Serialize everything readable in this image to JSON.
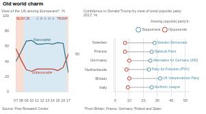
{
  "title": "Old world charm",
  "chart_data": [
    {
      "type": "line",
      "subtitle": "View of the US among Europeans*, %",
      "x": [
        2007,
        2008,
        2009,
        2010,
        2011,
        2012,
        2013,
        2014,
        2015,
        2016,
        2017
      ],
      "series": [
        {
          "name": "Favourable",
          "color": "#2e6b7a",
          "values": [
            40,
            53,
            67,
            68,
            63,
            63,
            64,
            63,
            65,
            64,
            25
          ]
        },
        {
          "name": "Unfavourable",
          "color": "#c0392b",
          "values": [
            57,
            42,
            29,
            27,
            30,
            30,
            30,
            30,
            28,
            32,
            50
          ]
        }
      ],
      "xlim": [
        2007,
        2017
      ],
      "xticks": [
        {
          "value": 2007,
          "label": "07"
        },
        {
          "value": 2008,
          "label": "08"
        },
        {
          "value": 2009,
          "label": "09"
        },
        {
          "value": 2010,
          "label": "10"
        },
        {
          "value": 2011,
          "label": "11"
        },
        {
          "value": 2012,
          "label": "12"
        },
        {
          "value": 2013,
          "label": "13"
        },
        {
          "value": 2014,
          "label": "14"
        },
        {
          "value": 2015,
          "label": "15"
        },
        {
          "value": 2016,
          "label": "16"
        },
        {
          "value": 2017,
          "label": "17"
        }
      ],
      "ylim": [
        0,
        100
      ],
      "yticks": [
        0,
        20,
        40,
        60,
        80,
        100
      ],
      "y2lim": [
        0,
        100
      ],
      "y2ticks": [
        50
      ],
      "regions": [
        {
          "label": "BUSH JR",
          "x": [
            2007,
            2008.5
          ],
          "color": "#f5cfc0",
          "text_color": "#c0392b"
        },
        {
          "label": "O  B  A  M  A",
          "x": [
            2008.5,
            2016.7
          ],
          "color": "#c8dff0",
          "text_color": "#888888"
        },
        {
          "label": "TRUMP",
          "x": [
            2016.7,
            2017
          ],
          "color": "#f5cfc0",
          "text_color": "#c0392b"
        }
      ],
      "grid": false,
      "source": "Source: Pew Research Centre"
    },
    {
      "type": "dot",
      "subtitle": [
        "Confidence in Donald Trump by view of local populist party",
        "2017, %"
      ],
      "categories": [
        "Sweden",
        "France",
        "Germany",
        "Netherlands",
        "Britain",
        "Italy"
      ],
      "orientation": "horizontal",
      "series": [
        {
          "name": "Supporters",
          "color": "#4a90a4",
          "values": [
            28,
            26,
            25,
            24,
            32,
            26
          ],
          "labels": [
            "Sweden Democrats",
            "National Front",
            "Alternative for Germany (AfD)",
            "Party for Freedom (PVV)",
            "UK Independence Party",
            "Northern League"
          ]
        },
        {
          "name": "Opponents",
          "color": "#c0392b",
          "values": [
            7,
            7,
            10,
            8,
            10,
            9
          ]
        }
      ],
      "xlim": [
        -1,
        53
      ],
      "xticks": [
        0,
        10,
        20,
        30,
        40,
        50
      ],
      "grid": true,
      "legend": "upper right",
      "legend_title": "Among populist party's:",
      "source": "*From Britain, France, Germany, Poland and Spain"
    }
  ]
}
